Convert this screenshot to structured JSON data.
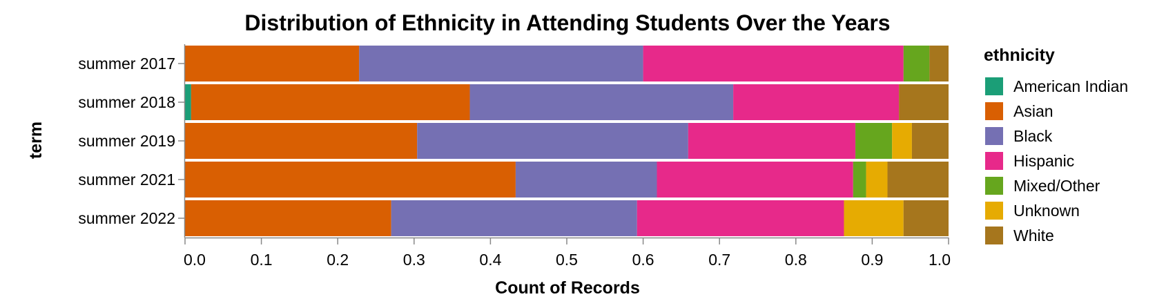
{
  "chart_data": {
    "type": "bar",
    "orientation": "horizontal",
    "stacked": "normalized",
    "title": "Distribution of Ethnicity in Attending Students Over the Years",
    "xlabel": "Count of Records",
    "ylabel": "term",
    "xlim": [
      0,
      1
    ],
    "x_ticks": [
      "0.0",
      "0.1",
      "0.2",
      "0.3",
      "0.4",
      "0.5",
      "0.6",
      "0.7",
      "0.8",
      "0.9",
      "1.0"
    ],
    "grid": false,
    "legend_position": "right",
    "legend_title": "ethnicity",
    "categories": [
      "summer 2017",
      "summer 2018",
      "summer 2019",
      "summer 2021",
      "summer 2022"
    ],
    "series": [
      {
        "name": "American Indian",
        "color": "#1b9e77",
        "values": [
          0,
          0.008,
          0,
          0,
          0
        ]
      },
      {
        "name": "Asian",
        "color": "#d95f02",
        "values": [
          0.228,
          0.365,
          0.304,
          0.433,
          0.27
        ]
      },
      {
        "name": "Black",
        "color": "#7570b3",
        "values": [
          0.372,
          0.345,
          0.355,
          0.185,
          0.322
        ]
      },
      {
        "name": "Hispanic",
        "color": "#e7298a",
        "values": [
          0.341,
          0.217,
          0.219,
          0.257,
          0.271
        ]
      },
      {
        "name": "Mixed/Other",
        "color": "#66a61e",
        "values": [
          0.034,
          0,
          0.048,
          0.017,
          0
        ]
      },
      {
        "name": "Unknown",
        "color": "#e6ab02",
        "values": [
          0,
          0,
          0.026,
          0.028,
          0.078
        ]
      },
      {
        "name": "White",
        "color": "#a6761d",
        "values": [
          0.025,
          0.065,
          0.048,
          0.08,
          0.059
        ]
      }
    ]
  }
}
